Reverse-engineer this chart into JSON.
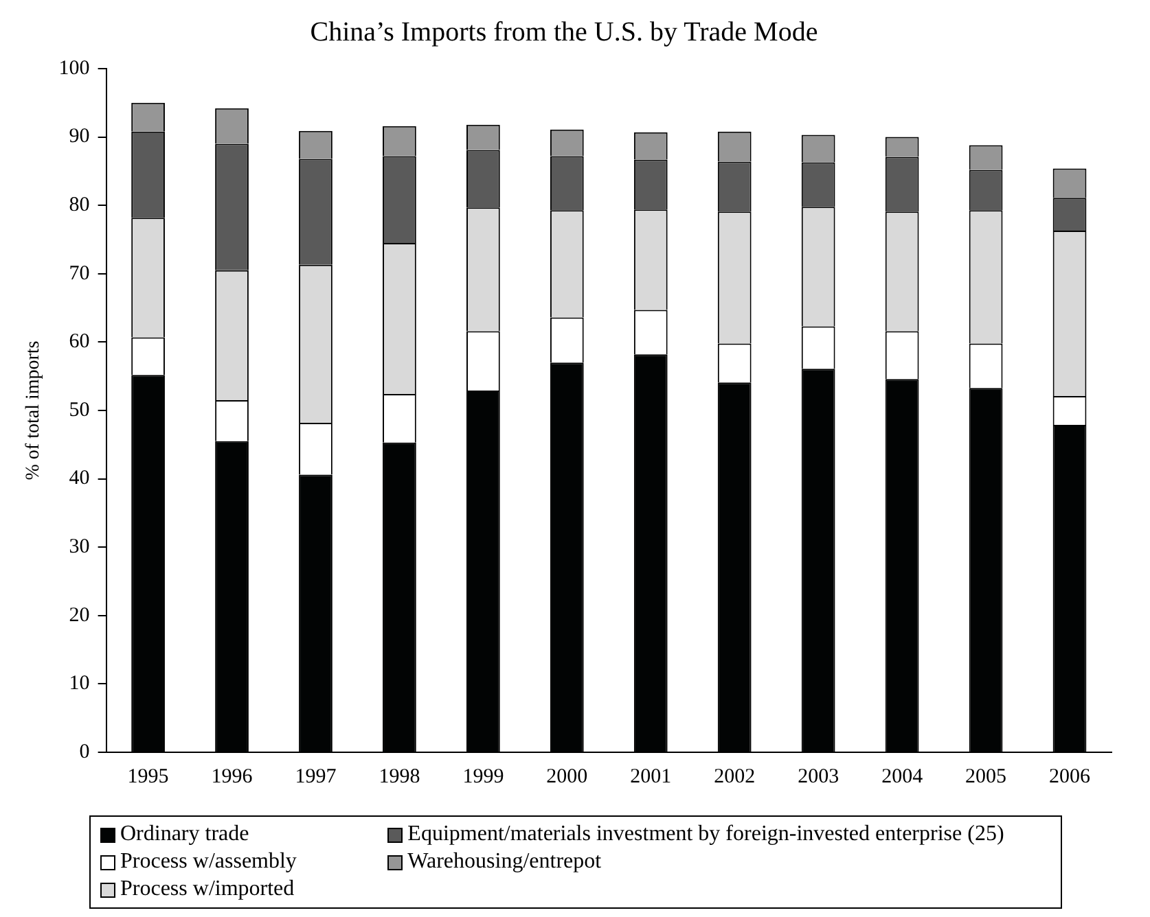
{
  "chart_data": {
    "type": "bar",
    "title": "China’s Imports from the U.S. by Trade Mode",
    "ylabel": "% of total imports",
    "stacked": true,
    "legend": "bottom",
    "grid": false,
    "categories": [
      "1995",
      "1996",
      "1997",
      "1998",
      "1999",
      "2000",
      "2001",
      "2002",
      "2003",
      "2004",
      "2005",
      "2006"
    ],
    "ylim": [
      0,
      100
    ],
    "yticks": [
      0,
      10,
      20,
      30,
      40,
      50,
      60,
      70,
      80,
      90,
      100
    ],
    "series": [
      {
        "name": "Ordinary trade",
        "color": "#020404",
        "values": [
          55.2,
          45.5,
          40.6,
          45.3,
          52.9,
          57.0,
          58.2,
          54.1,
          56.1,
          54.6,
          53.3,
          47.9
        ]
      },
      {
        "name": "Process w/assembly",
        "color": "#ffffff",
        "values": [
          5.5,
          6.0,
          7.6,
          7.1,
          8.7,
          6.6,
          6.5,
          5.7,
          6.2,
          7.0,
          6.5,
          4.2
        ]
      },
      {
        "name": "Process w/imported",
        "color": "#d9d9d9",
        "values": [
          17.5,
          19.0,
          23.1,
          22.1,
          18.1,
          15.7,
          14.7,
          19.3,
          17.5,
          17.5,
          19.5,
          24.2
        ]
      },
      {
        "name": "Equipment/materials investment by foreign-invested enterprise (25)",
        "color": "#5a5a5a",
        "values": [
          12.6,
          18.5,
          15.5,
          12.7,
          8.4,
          7.9,
          7.3,
          7.3,
          6.5,
          8.0,
          5.9,
          4.8
        ]
      },
      {
        "name": "Warehousing/entrepot",
        "color": "#969696",
        "values": [
          4.2,
          5.2,
          4.1,
          4.4,
          3.7,
          3.9,
          4.0,
          4.4,
          4.0,
          2.9,
          3.6,
          4.3
        ]
      }
    ]
  }
}
